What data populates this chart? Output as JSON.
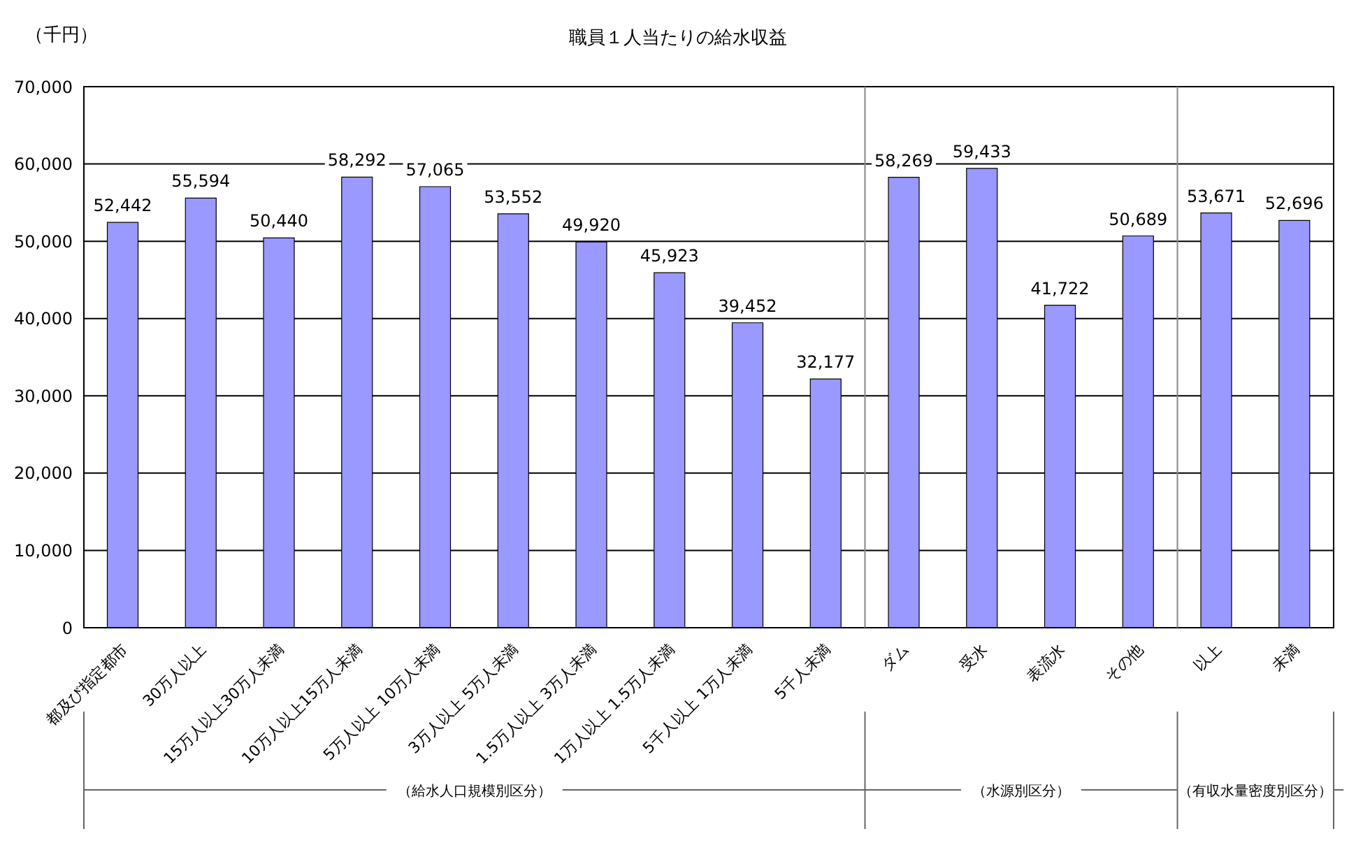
{
  "chart_data": {
    "type": "bar",
    "title": "職員１人当たりの給水収益",
    "ylabel": "（千円）",
    "categories": [
      "都及び指定都市",
      "30万人以上",
      "15万人以上30万人未満",
      "10万人以上15万人未満",
      "5万人以上 10万人未満",
      "3万人以上 5万人未満",
      "1.5万人以上 3万人未満",
      "1万人以上 1.5万人未満",
      "5千人以上 1万人未満",
      "5千人未満",
      "ダム",
      "受水",
      "表流水",
      "その他",
      "以上",
      "未満"
    ],
    "values": [
      52442,
      55594,
      50440,
      58292,
      57065,
      53552,
      49920,
      45923,
      39452,
      32177,
      58269,
      59433,
      41722,
      50689,
      53671,
      52696
    ],
    "value_labels": [
      "52,442",
      "55,594",
      "50,440",
      "58,292",
      "57,065",
      "53,552",
      "49,920",
      "45,923",
      "39,452",
      "32,177",
      "58,269",
      "59,433",
      "41,722",
      "50,689",
      "53,671",
      "52,696"
    ],
    "color": "#9999ff",
    "ylim": [
      0,
      70000
    ],
    "yticks": [
      0,
      {
        "value": 10000,
        "label": "10,000"
      },
      {
        "value": 20000,
        "label": "20,000"
      },
      {
        "value": 30000,
        "label": "30,000"
      },
      {
        "value": 40000,
        "label": "40,000"
      },
      {
        "value": 50000,
        "label": "50,000"
      },
      {
        "value": 60000,
        "label": "60,000"
      },
      {
        "value": 70000,
        "label": "70,000"
      }
    ],
    "grid": "y",
    "annotations": [
      "（給水人口規模別区分）",
      "（水源別区分）",
      "（有収水量密度別区分）"
    ]
  }
}
